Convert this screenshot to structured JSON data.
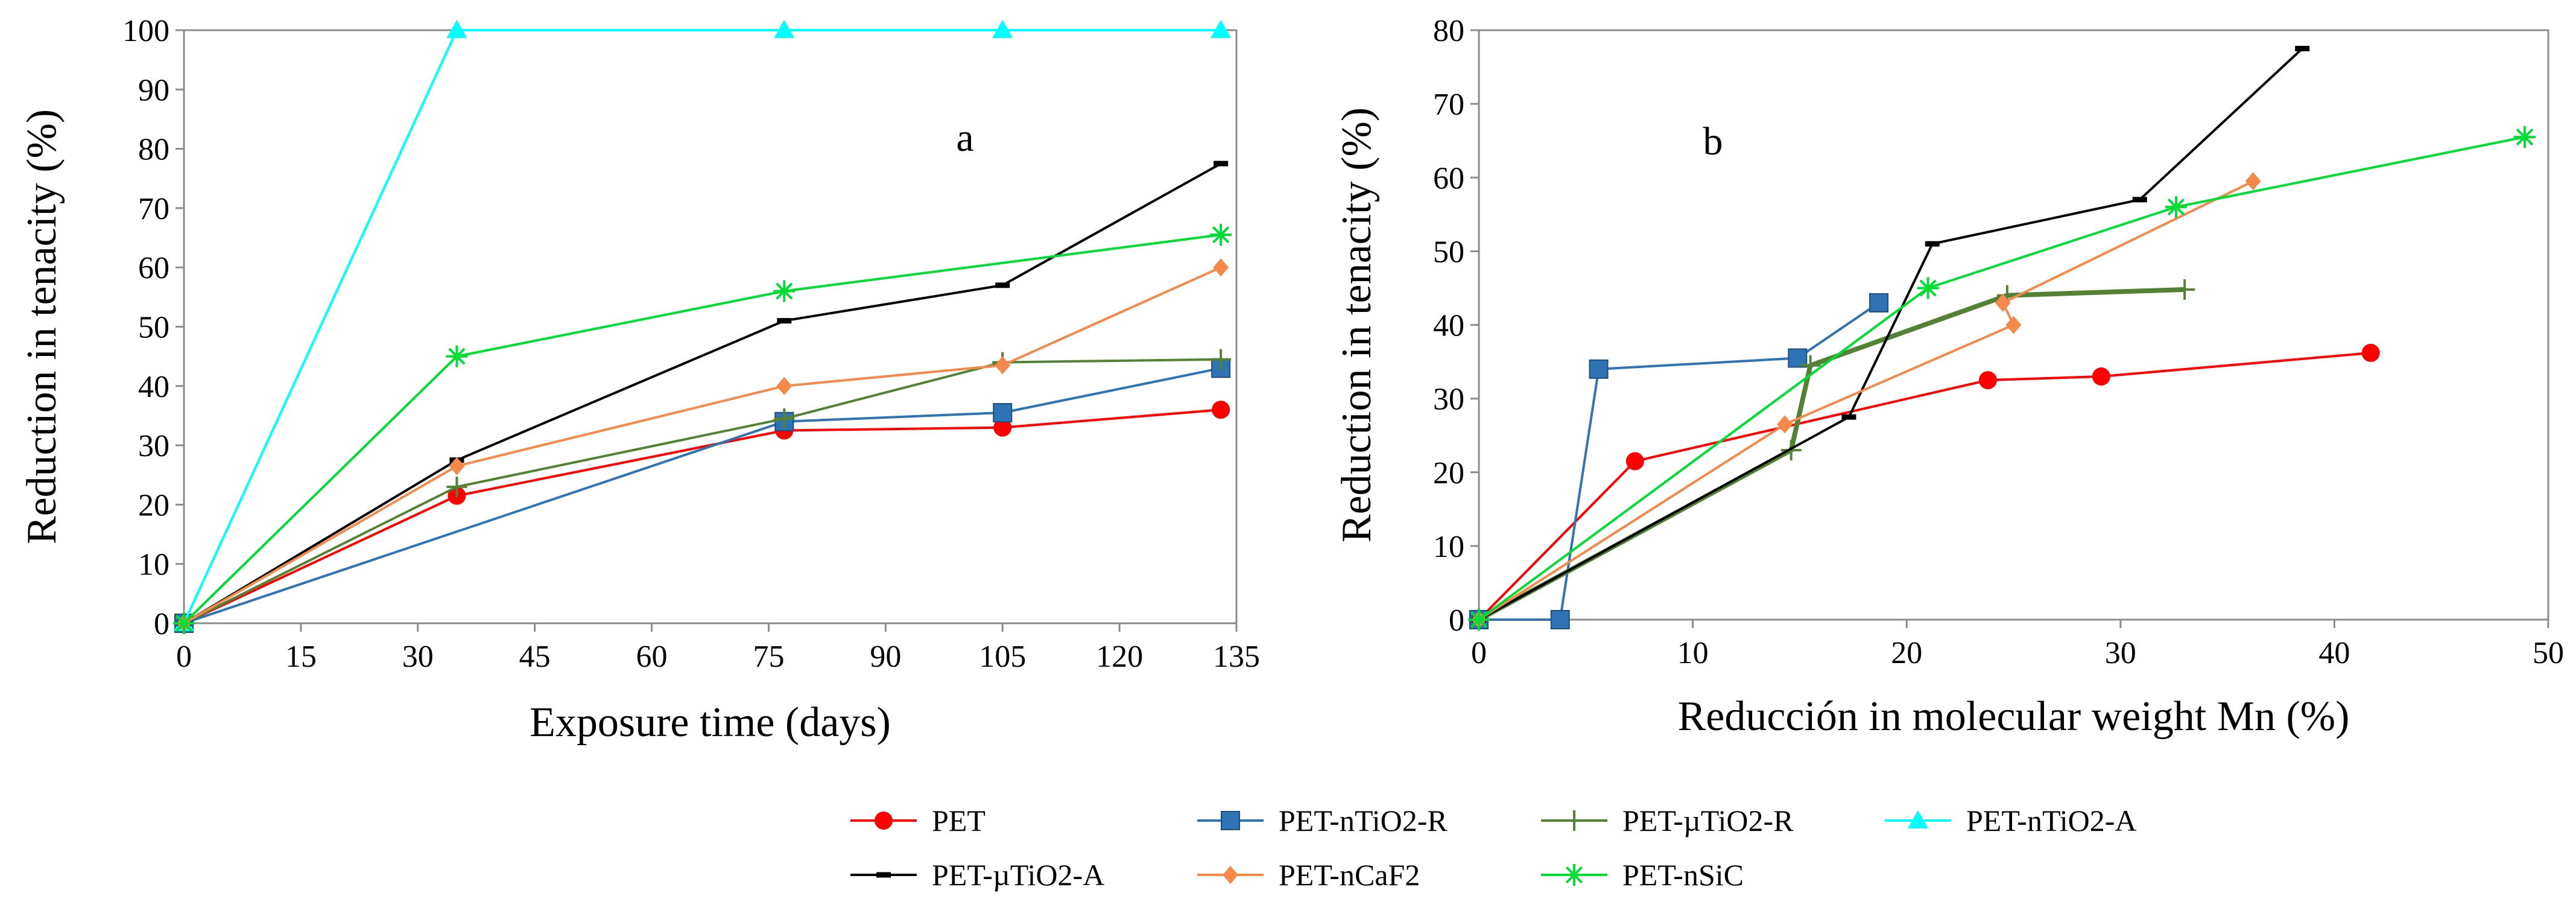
{
  "colors": {
    "PET": "#ff0000",
    "PET-nTiO2-R": "#2e74b5",
    "PET-µTiO2-R": "#548235",
    "PET-nTiO2-A": "#00ffff",
    "PET-µTiO2-A": "#000000",
    "PET-nCaF2": "#f4894a",
    "PET-nSiC": "#00dd33"
  },
  "legend": {
    "entries": [
      {
        "name": "PET",
        "marker": "circle"
      },
      {
        "name": "PET-nTiO2-R",
        "marker": "square"
      },
      {
        "name": "PET-µTiO2-R",
        "marker": "plus"
      },
      {
        "name": "PET-nTiO2-A",
        "marker": "triangle"
      },
      {
        "name": "PET-µTiO2-A",
        "marker": "dash"
      },
      {
        "name": "PET-nCaF2",
        "marker": "diamond"
      },
      {
        "name": "PET-nSiC",
        "marker": "asterisk"
      }
    ]
  },
  "chart_data": [
    {
      "type": "line",
      "panel_label": "a",
      "title": "",
      "xlabel": "Exposure time (days)",
      "ylabel": "Reduction in tenacity (%)",
      "xlim": [
        0,
        135
      ],
      "ylim": [
        0,
        100
      ],
      "xticks": [
        0,
        15,
        30,
        45,
        60,
        75,
        90,
        105,
        120,
        135
      ],
      "yticks": [
        0,
        10,
        20,
        30,
        40,
        50,
        60,
        70,
        80,
        90,
        100
      ],
      "grid": false,
      "series": [
        {
          "name": "PET",
          "marker": "circle",
          "points": [
            [
              0,
              0
            ],
            [
              35,
              21.5
            ],
            [
              77,
              32.5
            ],
            [
              105,
              33
            ],
            [
              133,
              36
            ]
          ]
        },
        {
          "name": "PET-nTiO2-R",
          "marker": "square",
          "points": [
            [
              0,
              0
            ],
            [
              77,
              34
            ],
            [
              105,
              35.5
            ],
            [
              133,
              43
            ]
          ]
        },
        {
          "name": "PET-µTiO2-R",
          "marker": "plus",
          "points": [
            [
              0,
              0
            ],
            [
              35,
              23
            ],
            [
              77,
              34.5
            ],
            [
              105,
              44
            ],
            [
              133,
              44.5
            ]
          ]
        },
        {
          "name": "PET-nTiO2-A",
          "marker": "triangle",
          "points": [
            [
              0,
              0
            ],
            [
              35,
              100
            ],
            [
              77,
              100
            ],
            [
              105,
              100
            ],
            [
              133,
              100
            ]
          ]
        },
        {
          "name": "PET-µTiO2-A",
          "marker": "dash",
          "points": [
            [
              0,
              0
            ],
            [
              35,
              27.5
            ],
            [
              77,
              51
            ],
            [
              105,
              57
            ],
            [
              133,
              77.5
            ]
          ]
        },
        {
          "name": "PET-nCaF2",
          "marker": "diamond",
          "points": [
            [
              0,
              0
            ],
            [
              35,
              26.5
            ],
            [
              77,
              40
            ],
            [
              105,
              43.5
            ],
            [
              133,
              60
            ]
          ]
        },
        {
          "name": "PET-nSiC",
          "marker": "asterisk",
          "points": [
            [
              0,
              0
            ],
            [
              35,
              45
            ],
            [
              77,
              56
            ],
            [
              133,
              65.5
            ]
          ]
        }
      ]
    },
    {
      "type": "line",
      "panel_label": "b",
      "title": "",
      "xlabel": "Reducción in molecular weight Mn (%)",
      "ylabel": "Reduction in tenacity (%)",
      "xlim": [
        0,
        50
      ],
      "ylim": [
        0,
        80
      ],
      "xticks": [
        0,
        10,
        20,
        30,
        40,
        50
      ],
      "yticks": [
        0,
        10,
        20,
        30,
        40,
        50,
        60,
        70,
        80
      ],
      "grid": false,
      "series": [
        {
          "name": "PET",
          "marker": "circle",
          "points": [
            [
              0,
              0
            ],
            [
              7.3,
              21.5
            ],
            [
              23.8,
              32.5
            ],
            [
              29.1,
              33
            ],
            [
              41.7,
              36.2
            ]
          ]
        },
        {
          "name": "PET-nTiO2-R",
          "marker": "square",
          "points": [
            [
              0,
              0
            ],
            [
              3.8,
              0
            ],
            [
              5.6,
              34
            ],
            [
              14.9,
              35.5
            ],
            [
              18.7,
              43
            ]
          ]
        },
        {
          "name": "PET-µTiO2-R",
          "marker": "plus",
          "points": [
            [
              0,
              0
            ],
            [
              14.6,
              23
            ],
            [
              15.5,
              34.5
            ],
            [
              24.7,
              44
            ],
            [
              33,
              44.8
            ]
          ]
        },
        {
          "name": "PET-µTiO2-A",
          "marker": "dash",
          "points": [
            [
              0,
              0
            ],
            [
              17.3,
              27.5
            ],
            [
              21.2,
              51
            ],
            [
              30.9,
              57
            ],
            [
              38.5,
              77.5
            ]
          ]
        },
        {
          "name": "PET-nCaF2",
          "marker": "diamond",
          "points": [
            [
              0,
              0
            ],
            [
              14.3,
              26.5
            ],
            [
              25,
              40
            ],
            [
              24.5,
              43
            ],
            [
              36.2,
              59.5
            ]
          ]
        },
        {
          "name": "PET-nSiC",
          "marker": "asterisk",
          "points": [
            [
              0,
              0
            ],
            [
              21,
              45
            ],
            [
              32.6,
              56
            ],
            [
              48.9,
              65.5
            ]
          ]
        }
      ]
    }
  ]
}
